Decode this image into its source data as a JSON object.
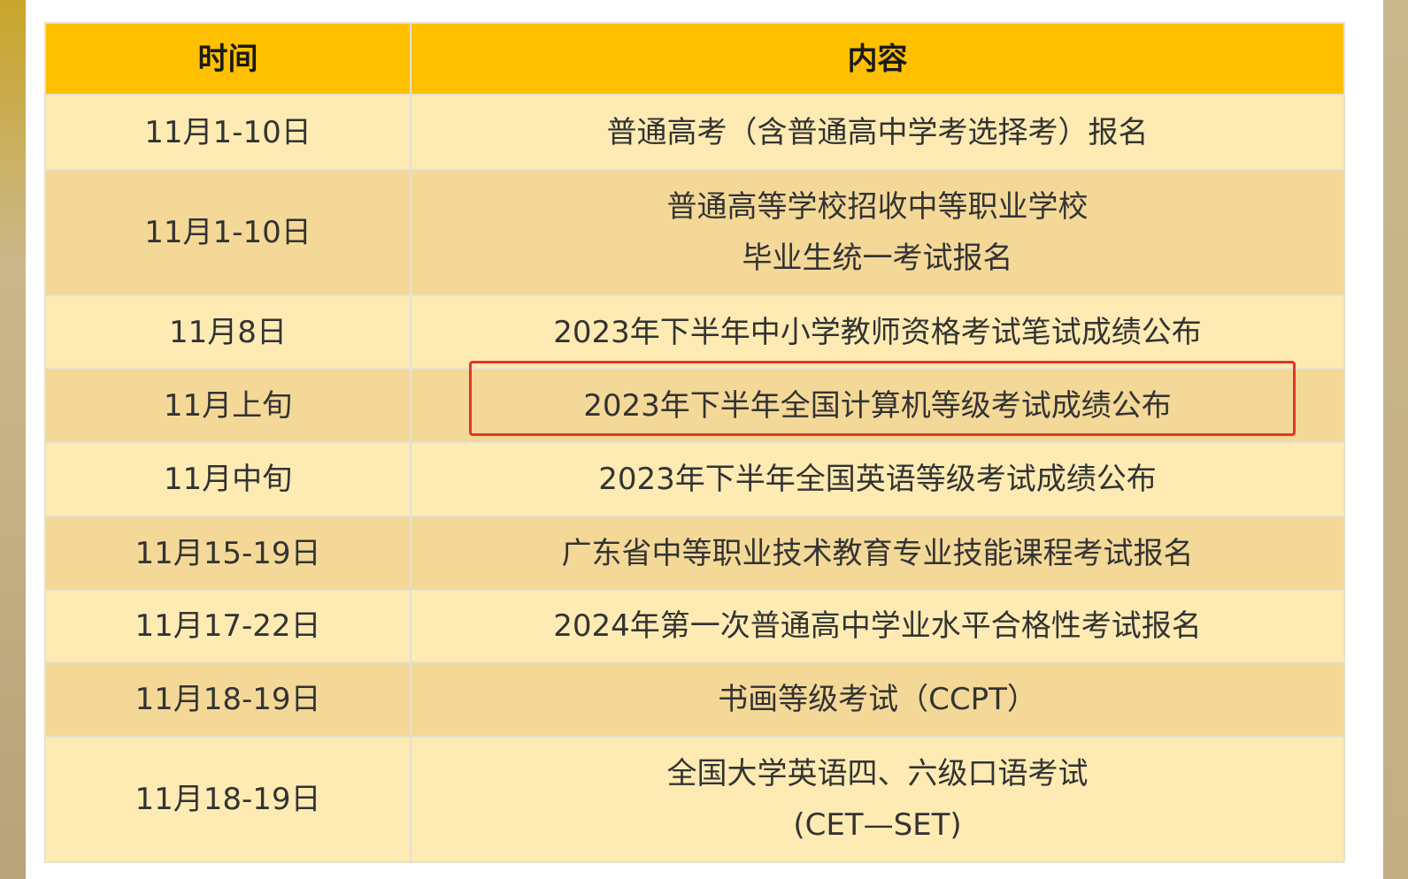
{
  "table": {
    "headers": [
      "时间",
      "内容"
    ],
    "rows": [
      {
        "time": "11月1-10日",
        "content": [
          "普通高考（含普通高中学考选择考）报名"
        ]
      },
      {
        "time": "11月1-10日",
        "content": [
          "普通高等学校招收中等职业学校",
          "毕业生统一考试报名"
        ]
      },
      {
        "time": "11月8日",
        "content": [
          "2023年下半年中小学教师资格考试笔试成绩公布"
        ]
      },
      {
        "time": "11月上旬",
        "content": [
          "2023年下半年全国计算机等级考试成绩公布"
        ],
        "highlighted": true
      },
      {
        "time": "11月中旬",
        "content": [
          "2023年下半年全国英语等级考试成绩公布"
        ]
      },
      {
        "time": "11月15-19日",
        "content": [
          "广东省中等职业技术教育专业技能课程考试报名"
        ]
      },
      {
        "time": "11月17-22日",
        "content": [
          "2024年第一次普通高中学业水平合格性考试报名"
        ]
      },
      {
        "time": "11月18-19日",
        "content": [
          "书画等级考试（CCPT）"
        ]
      },
      {
        "time": "11月18-19日",
        "content": [
          "全国大学英语四、六级口语考试",
          "(CET—SET)"
        ]
      }
    ]
  },
  "colors": {
    "header": "#ffc000",
    "row_light": "#fdebb3",
    "row_dark": "#f3d898",
    "highlight": "#e8332a"
  }
}
